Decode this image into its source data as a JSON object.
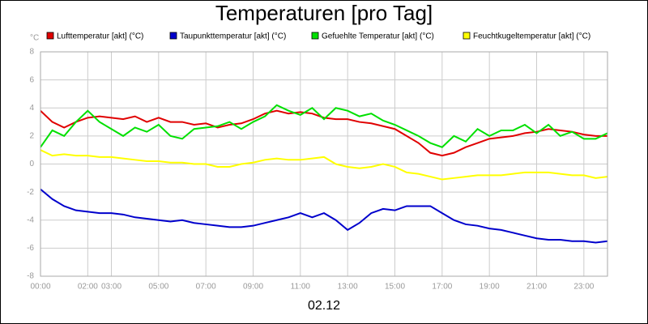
{
  "chart_data": {
    "type": "line",
    "title": "Temperaturen [pro Tag]",
    "y_unit": "°C",
    "x_label": "02.12",
    "x": [
      0,
      0.5,
      1,
      1.5,
      2,
      2.5,
      3,
      3.5,
      4,
      4.5,
      5,
      5.5,
      6,
      6.5,
      7,
      7.5,
      8,
      8.5,
      9,
      9.5,
      10,
      10.5,
      11,
      11.5,
      12,
      12.5,
      13,
      13.5,
      14,
      14.5,
      15,
      15.5,
      16,
      16.5,
      17,
      17.5,
      18,
      18.5,
      19,
      19.5,
      20,
      20.5,
      21,
      21.5,
      22,
      22.5,
      23,
      23.5,
      24
    ],
    "series": [
      {
        "name": "Lufttemperatur [akt] (°C)",
        "color": "#e00000",
        "values": [
          3.8,
          3.0,
          2.6,
          3.0,
          3.3,
          3.4,
          3.3,
          3.2,
          3.4,
          3.0,
          3.3,
          3.0,
          3.0,
          2.8,
          2.9,
          2.6,
          2.8,
          2.9,
          3.2,
          3.6,
          3.8,
          3.6,
          3.7,
          3.6,
          3.3,
          3.2,
          3.2,
          3.0,
          2.9,
          2.7,
          2.5,
          2.0,
          1.5,
          0.8,
          0.6,
          0.8,
          1.2,
          1.5,
          1.8,
          1.9,
          2.0,
          2.2,
          2.3,
          2.5,
          2.4,
          2.3,
          2.1,
          2.0,
          2.0
        ]
      },
      {
        "name": "Taupunkttemperatur [akt] (°C)",
        "color": "#0000cc",
        "values": [
          -1.8,
          -2.5,
          -3.0,
          -3.3,
          -3.4,
          -3.5,
          -3.5,
          -3.6,
          -3.8,
          -3.9,
          -4.0,
          -4.1,
          -4.0,
          -4.2,
          -4.3,
          -4.4,
          -4.5,
          -4.5,
          -4.4,
          -4.2,
          -4.0,
          -3.8,
          -3.5,
          -3.8,
          -3.5,
          -4.0,
          -4.7,
          -4.2,
          -3.5,
          -3.2,
          -3.3,
          -3.0,
          -3.0,
          -3.0,
          -3.5,
          -4.0,
          -4.3,
          -4.4,
          -4.6,
          -4.7,
          -4.9,
          -5.1,
          -5.3,
          -5.4,
          -5.4,
          -5.5,
          -5.5,
          -5.6,
          -5.5
        ]
      },
      {
        "name": "Gefuehlte Temperatur [akt] (°C)",
        "color": "#00e000",
        "values": [
          1.2,
          2.4,
          2.0,
          3.0,
          3.8,
          3.0,
          2.5,
          2.0,
          2.6,
          2.3,
          2.8,
          2.0,
          1.8,
          2.5,
          2.6,
          2.7,
          3.0,
          2.5,
          3.0,
          3.4,
          4.2,
          3.8,
          3.5,
          4.0,
          3.2,
          4.0,
          3.8,
          3.4,
          3.6,
          3.1,
          2.8,
          2.4,
          2.0,
          1.5,
          1.2,
          2.0,
          1.6,
          2.5,
          2.0,
          2.4,
          2.4,
          2.8,
          2.2,
          2.8,
          2.0,
          2.3,
          1.8,
          1.8,
          2.2
        ]
      },
      {
        "name": "Feuchtkugeltemperatur [akt] (°C)",
        "color": "#ffff00",
        "values": [
          1.0,
          0.6,
          0.7,
          0.6,
          0.6,
          0.5,
          0.5,
          0.4,
          0.3,
          0.2,
          0.2,
          0.1,
          0.1,
          0.0,
          0.0,
          -0.2,
          -0.2,
          0.0,
          0.1,
          0.3,
          0.4,
          0.3,
          0.3,
          0.4,
          0.5,
          0.0,
          -0.2,
          -0.3,
          -0.2,
          0.0,
          -0.2,
          -0.6,
          -0.7,
          -0.9,
          -1.1,
          -1.0,
          -0.9,
          -0.8,
          -0.8,
          -0.8,
          -0.7,
          -0.6,
          -0.6,
          -0.6,
          -0.7,
          -0.8,
          -0.8,
          -1.0,
          -0.9
        ]
      }
    ],
    "xlim": [
      0,
      24
    ],
    "xticks": [
      {
        "value": 0,
        "label": "00:00"
      },
      {
        "value": 2,
        "label": "02:00"
      },
      {
        "value": 3,
        "label": "03:00"
      },
      {
        "value": 5,
        "label": "05:00"
      },
      {
        "value": 7,
        "label": "07:00"
      },
      {
        "value": 9,
        "label": "09:00"
      },
      {
        "value": 11,
        "label": "11:00"
      },
      {
        "value": 13,
        "label": "13:00"
      },
      {
        "value": 15,
        "label": "15:00"
      },
      {
        "value": 17,
        "label": "17:00"
      },
      {
        "value": 19,
        "label": "19:00"
      },
      {
        "value": 21,
        "label": "21:00"
      },
      {
        "value": 23,
        "label": "23:00"
      }
    ],
    "ylim": [
      -8,
      8
    ],
    "yticks": [
      8,
      6,
      4,
      2,
      0,
      -2,
      -4,
      -6,
      -8
    ],
    "grid": true
  }
}
